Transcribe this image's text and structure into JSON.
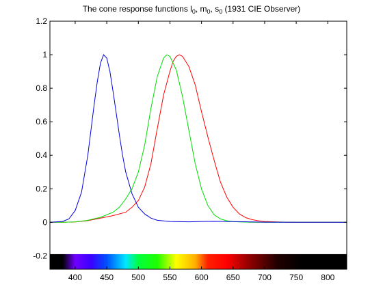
{
  "chart_data": {
    "type": "line",
    "title": {
      "main": "The cone response functions l",
      "sub1": "0",
      "mid1": ", m",
      "sub2": "0",
      "mid2": ", s",
      "sub3": "0",
      "tail": " (1931 CIE Observer)"
    },
    "xlabel": "",
    "ylabel": "",
    "xlim": [
      360,
      830
    ],
    "ylim": [
      -0.28,
      1.2
    ],
    "grid": false,
    "x_ticks": [
      "400",
      "450",
      "500",
      "550",
      "600",
      "650",
      "700",
      "750",
      "800"
    ],
    "y_ticks": [
      "-0.2",
      "0",
      "0.2",
      "0.4",
      "0.6",
      "0.8",
      "1",
      "1.2"
    ],
    "spectrum_bar": {
      "y_range": [
        -0.28,
        -0.19
      ],
      "stops": [
        {
          "nm": 360,
          "color": "#000000"
        },
        {
          "nm": 380,
          "color": "#000000"
        },
        {
          "nm": 400,
          "color": "#7000ff"
        },
        {
          "nm": 425,
          "color": "#3a00ff"
        },
        {
          "nm": 450,
          "color": "#0050ff"
        },
        {
          "nm": 480,
          "color": "#00e6ff"
        },
        {
          "nm": 500,
          "color": "#00ff40"
        },
        {
          "nm": 530,
          "color": "#20ff00"
        },
        {
          "nm": 560,
          "color": "#ffff00"
        },
        {
          "nm": 590,
          "color": "#ffb000"
        },
        {
          "nm": 610,
          "color": "#ff2000"
        },
        {
          "nm": 640,
          "color": "#ff0000"
        },
        {
          "nm": 670,
          "color": "#a00000"
        },
        {
          "nm": 720,
          "color": "#200000"
        },
        {
          "nm": 760,
          "color": "#000000"
        },
        {
          "nm": 830,
          "color": "#000000"
        }
      ]
    },
    "series": [
      {
        "color": "#ff0000",
        "x": [
          360,
          380,
          400,
          420,
          440,
          460,
          480,
          490,
          500,
          510,
          520,
          530,
          540,
          550,
          555,
          560,
          565,
          570,
          580,
          590,
          600,
          610,
          620,
          630,
          640,
          650,
          660,
          670,
          680,
          690,
          700,
          720,
          740,
          760,
          780,
          800,
          830
        ],
        "y": [
          0.0,
          0.0,
          0.002,
          0.01,
          0.025,
          0.04,
          0.06,
          0.09,
          0.13,
          0.21,
          0.35,
          0.56,
          0.76,
          0.9,
          0.96,
          0.99,
          1.0,
          0.99,
          0.93,
          0.82,
          0.66,
          0.51,
          0.37,
          0.24,
          0.15,
          0.09,
          0.05,
          0.028,
          0.016,
          0.009,
          0.005,
          0.002,
          0.0005,
          0.0,
          0.0,
          0.0,
          0.0
        ]
      },
      {
        "color": "#00dd00",
        "x": [
          360,
          380,
          400,
          420,
          440,
          460,
          470,
          480,
          490,
          500,
          510,
          520,
          530,
          540,
          545,
          550,
          560,
          570,
          580,
          590,
          600,
          610,
          620,
          630,
          640,
          650,
          660,
          680,
          700,
          730,
          760,
          800,
          830
        ],
        "y": [
          0.0,
          0.0,
          0.002,
          0.012,
          0.03,
          0.06,
          0.09,
          0.14,
          0.2,
          0.3,
          0.46,
          0.68,
          0.87,
          0.98,
          1.0,
          0.99,
          0.91,
          0.75,
          0.55,
          0.35,
          0.2,
          0.1,
          0.045,
          0.02,
          0.009,
          0.004,
          0.002,
          0.0005,
          0.0,
          0.0,
          0.0,
          0.0,
          0.0
        ]
      },
      {
        "color": "#0000dd",
        "x": [
          360,
          380,
          390,
          400,
          410,
          420,
          430,
          435,
          440,
          445,
          450,
          455,
          460,
          465,
          470,
          475,
          480,
          490,
          500,
          510,
          520,
          530,
          550,
          580,
          600,
          620,
          650,
          700,
          750,
          800,
          830
        ],
        "y": [
          0.0,
          0.005,
          0.02,
          0.07,
          0.18,
          0.4,
          0.7,
          0.84,
          0.95,
          1.0,
          0.98,
          0.9,
          0.78,
          0.65,
          0.52,
          0.4,
          0.3,
          0.17,
          0.09,
          0.05,
          0.025,
          0.012,
          0.005,
          0.003,
          0.005,
          0.006,
          0.004,
          0.001,
          0.0,
          0.0,
          0.0
        ]
      }
    ]
  }
}
